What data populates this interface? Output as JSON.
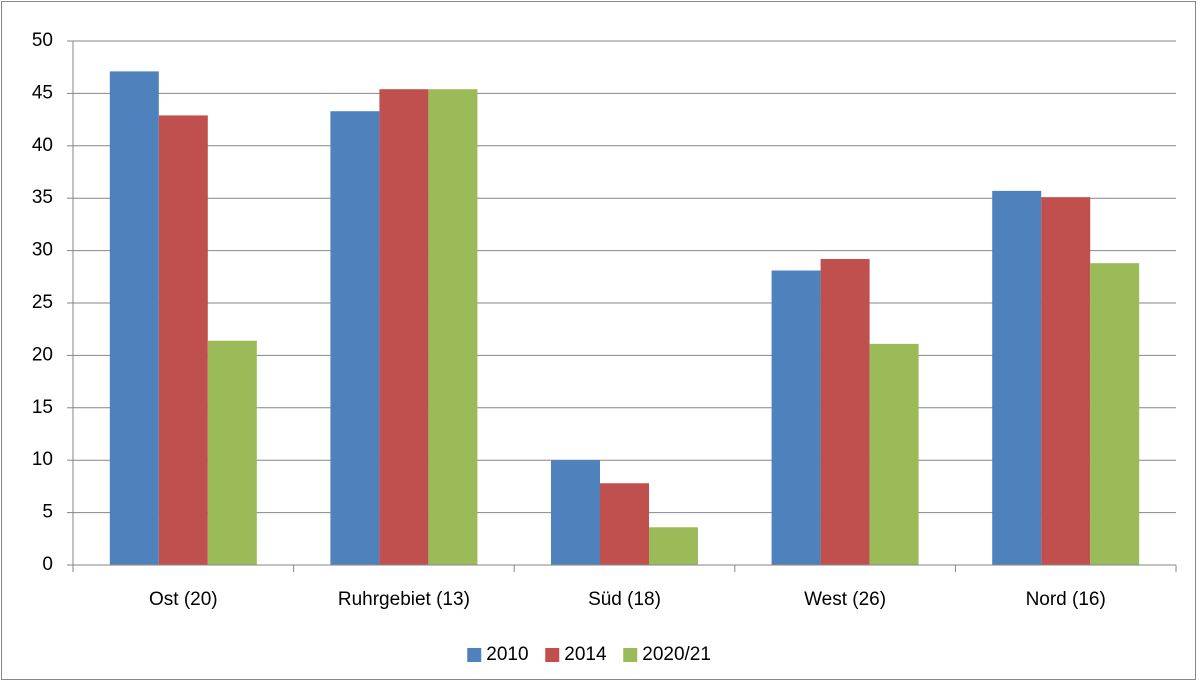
{
  "chart_data": {
    "type": "bar",
    "categories": [
      "Ost (20)",
      "Ruhrgebiet (13)",
      "Süd (18)",
      "West (26)",
      "Nord (16)"
    ],
    "series": [
      {
        "name": "2010",
        "color": "#4f81bd",
        "values": [
          47.1,
          43.3,
          10,
          28.1,
          35.7
        ]
      },
      {
        "name": "2014",
        "color": "#c0504d",
        "values": [
          42.9,
          45.4,
          7.8,
          29.2,
          35.1
        ]
      },
      {
        "name": "2020/21",
        "color": "#9bbb59",
        "values": [
          21.4,
          45.4,
          3.6,
          21.1,
          28.8
        ]
      }
    ],
    "ylim": [
      0,
      50
    ],
    "yticks": [
      0,
      5,
      10,
      15,
      20,
      25,
      30,
      35,
      40,
      45,
      50
    ],
    "grid": true,
    "legend": "bottom"
  }
}
